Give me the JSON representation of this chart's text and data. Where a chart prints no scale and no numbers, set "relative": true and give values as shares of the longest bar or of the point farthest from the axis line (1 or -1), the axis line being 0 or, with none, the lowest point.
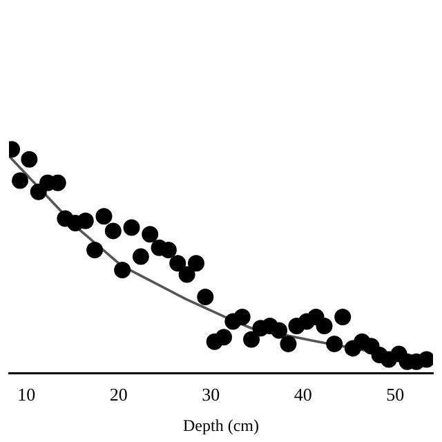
{
  "chart_data": {
    "type": "scatter",
    "xlabel": "Depth (cm)",
    "relative": true,
    "xlim": [
      8.1,
      54.1
    ],
    "xticks": [
      10,
      20,
      30,
      40,
      50
    ],
    "grid": false,
    "legend": false,
    "marker": "circle",
    "series": [
      {
        "type": "scatter",
        "color": "#000000",
        "x": [
          8.4,
          9.3,
          10.3,
          11.3,
          12.3,
          13.4,
          14.2,
          15.3,
          16.4,
          17.4,
          18.4,
          19.4,
          20.4,
          21.4,
          22.4,
          23.4,
          24.4,
          25.4,
          26.4,
          27.4,
          28.4,
          29.4,
          30.4,
          31.4,
          32.4,
          33.4,
          34.4,
          35.4,
          36.4,
          37.4,
          38.4,
          39.3,
          40.4,
          41.4,
          42.3,
          43.4,
          44.3,
          45.4,
          46.4,
          47.4,
          48.3,
          49.3,
          50.4,
          51.3,
          52.3,
          53.4
        ],
        "values": [
          1.0,
          0.86,
          0.955,
          0.81,
          0.85,
          0.85,
          0.69,
          0.67,
          0.68,
          0.55,
          0.7,
          0.635,
          0.46,
          0.65,
          0.52,
          0.62,
          0.56,
          0.55,
          0.49,
          0.44,
          0.49,
          0.34,
          0.14,
          0.16,
          0.23,
          0.25,
          0.15,
          0.2,
          0.21,
          0.19,
          0.13,
          0.21,
          0.23,
          0.25,
          0.21,
          0.13,
          0.25,
          0.11,
          0.14,
          0.12,
          0.08,
          0.06,
          0.085,
          0.05,
          0.05,
          0.06
        ]
      },
      {
        "type": "line",
        "color": "#555555",
        "marker": "none",
        "x": [
          8.1,
          15.2,
          20.3,
          27.3,
          32.1,
          34.4,
          41.6,
          48.8,
          54.1
        ],
        "values": [
          0.97,
          0.66,
          0.48,
          0.33,
          0.24,
          0.2,
          0.14,
          0.085,
          0.07
        ]
      }
    ]
  }
}
